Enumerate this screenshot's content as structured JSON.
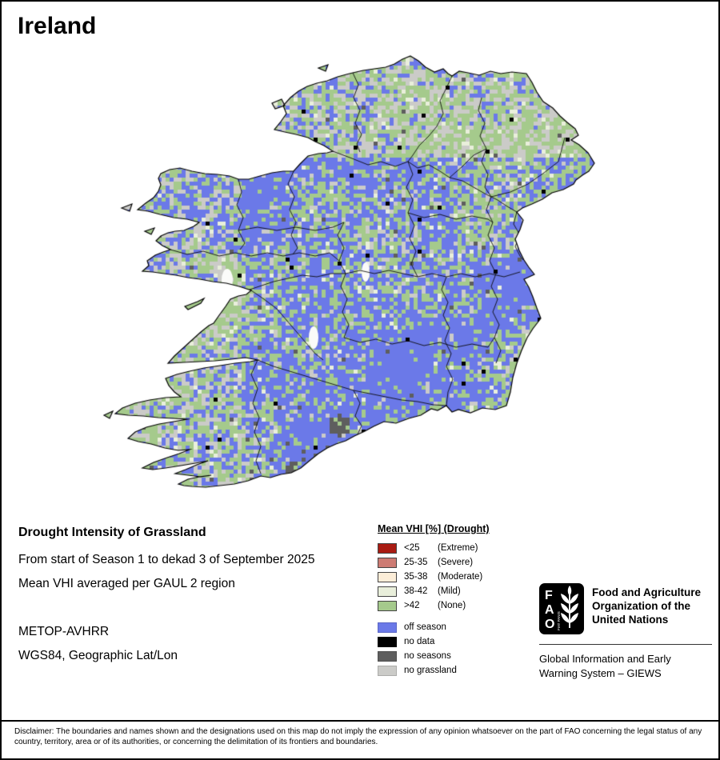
{
  "title": "Ireland",
  "info": {
    "heading": "Drought Intensity of Grassland",
    "period": "From start of Season 1 to dekad 3 of September 2025",
    "aggregation": "Mean VHI averaged per GAUL 2 region",
    "sensor": "METOP-AVHRR",
    "projection": "WGS84, Geographic Lat/Lon"
  },
  "legend": {
    "title": "Mean VHI [%] (Drought)",
    "classes": [
      {
        "range": "<25",
        "label": "(Extreme)",
        "color": "#a91b12"
      },
      {
        "range": "25-35",
        "label": "(Severe)",
        "color": "#cd7b73"
      },
      {
        "range": "35-38",
        "label": "(Moderate)",
        "color": "#fcedd8"
      },
      {
        "range": "38-42",
        "label": "(Mild)",
        "color": "#e9efdb"
      },
      {
        "range": ">42",
        "label": "(None)",
        "color": "#a5ca8c"
      }
    ],
    "extras": [
      {
        "label": "off season",
        "color": "#6b79e8"
      },
      {
        "label": "no data",
        "color": "#000000"
      },
      {
        "label": "no seasons",
        "color": "#5e5e5e"
      },
      {
        "label": "no grassland",
        "color": "#cbcbc8"
      }
    ]
  },
  "fao": {
    "logo_letters": [
      "F",
      "A",
      "O"
    ],
    "logo_motto": "FIAT PANIS",
    "org_lines": [
      "Food and Agriculture",
      "Organization of the",
      "United Nations"
    ],
    "giews_lines": [
      "Global Information and Early",
      "Warning System – GIEWS"
    ]
  },
  "disclaimer": "Disclaimer: The boundaries and names shown and the designations used on this map do not imply the expression of any opinion whatsoever on the part of FAO concerning the legal status of any country, territory, area or of its authorities, or concerning the delimitation of its frontiers and boundaries."
}
